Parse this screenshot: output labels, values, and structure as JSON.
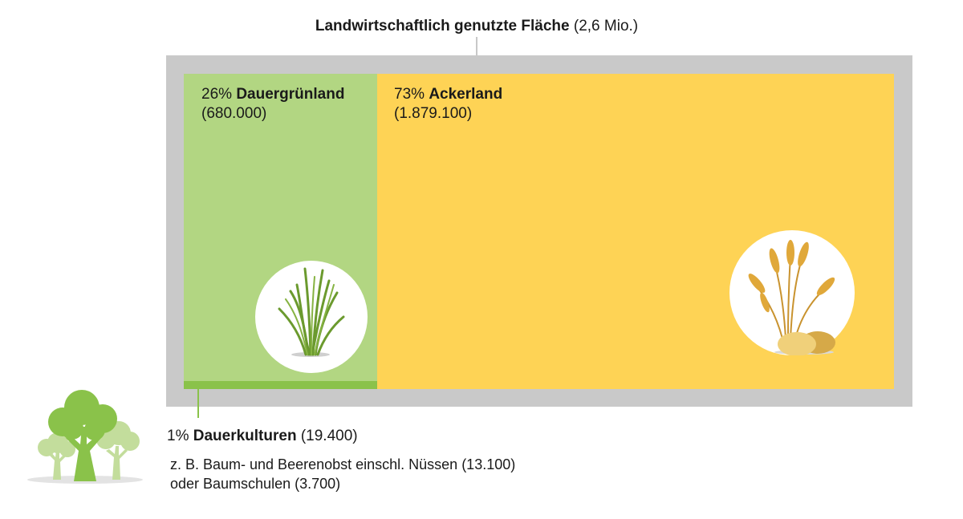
{
  "header": {
    "title_bold": "Landwirtschaftlich genutzte Fläche",
    "title_value": "(2,6 Mio.)"
  },
  "segments": {
    "dauergruenland": {
      "percent": "26%",
      "name": "Dauergrünland",
      "value": "(680.000)",
      "color": "#b2d682",
      "icon": "grass-icon"
    },
    "ackerland": {
      "percent": "73%",
      "name": "Ackerland",
      "value": "(1.879.100)",
      "color": "#fed355",
      "icon": "wheat-potato-icon"
    },
    "dauerkulturen": {
      "percent": "1%",
      "name": "Dauerkulturen",
      "value": "(19.400)",
      "color": "#8ac24a",
      "icon": "trees-icon",
      "desc_line1": "z. B. Baum- und Beerenobst einschl. Nüssen (13.100)",
      "desc_line2": "oder Baumschulen (3.700)"
    }
  },
  "colors": {
    "frame": "#c9c9c9"
  }
}
